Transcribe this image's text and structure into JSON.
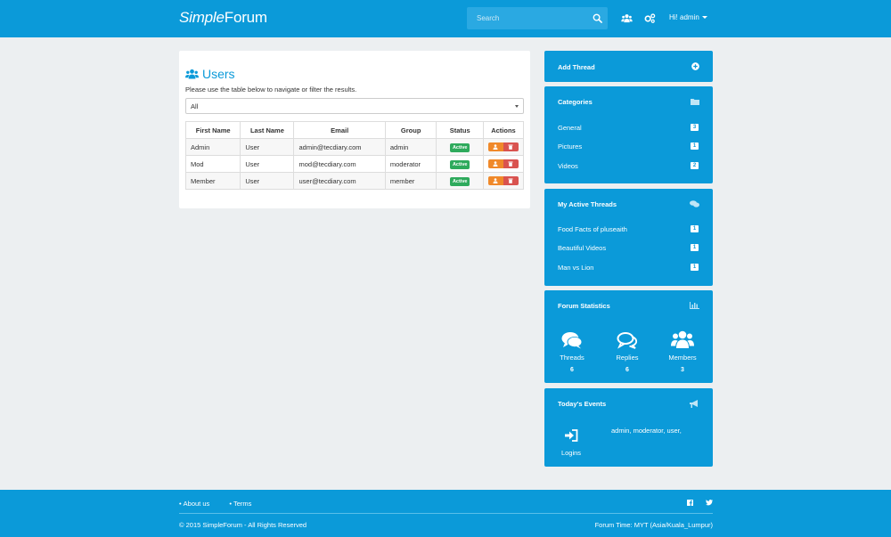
{
  "header": {
    "logo_simple": "Simple",
    "logo_forum": "Forum",
    "search_placeholder": "Search",
    "user_menu": "Hi! admin"
  },
  "main": {
    "title": "Users",
    "description": "Please use the table below to navigate or filter the results.",
    "filter_value": "All",
    "columns": [
      "First Name",
      "Last Name",
      "Email",
      "Group",
      "Status",
      "Actions"
    ],
    "rows": [
      {
        "first": "Admin",
        "last": "User",
        "email": "admin@tecdiary.com",
        "group": "admin",
        "status": "Active"
      },
      {
        "first": "Mod",
        "last": "User",
        "email": "mod@tecdiary.com",
        "group": "moderator",
        "status": "Active"
      },
      {
        "first": "Member",
        "last": "User",
        "email": "user@tecdiary.com",
        "group": "member",
        "status": "Active"
      }
    ]
  },
  "sidebar": {
    "add_thread": "Add Thread",
    "categories": {
      "title": "Categories",
      "items": [
        {
          "label": "General",
          "count": "3"
        },
        {
          "label": "Pictures",
          "count": "1"
        },
        {
          "label": "Videos",
          "count": "2"
        }
      ]
    },
    "active_threads": {
      "title": "My Active Threads",
      "items": [
        {
          "label": "Food Facts of pluseaith",
          "count": "1"
        },
        {
          "label": "Beautiful Videos",
          "count": "1"
        },
        {
          "label": "Man vs Lion",
          "count": "1"
        }
      ]
    },
    "statistics": {
      "title": "Forum Statistics",
      "items": [
        {
          "label": "Threads",
          "value": "6"
        },
        {
          "label": "Replies",
          "value": "6"
        },
        {
          "label": "Members",
          "value": "3"
        }
      ]
    },
    "events": {
      "title": "Today's Events",
      "logins_label": "Logins",
      "logins_users": "admin, moderator, user,"
    }
  },
  "footer": {
    "links": [
      "About us",
      "Terms"
    ],
    "copyright": "© 2015 SimpleForum - All Rights Reserved",
    "forum_time": "Forum Time: MYT (Asia/Kuala_Lumpur)"
  },
  "colors": {
    "brand": "#0b9ad9",
    "success": "#2eaa5c",
    "warning": "#f0892a",
    "danger": "#d9534f"
  }
}
